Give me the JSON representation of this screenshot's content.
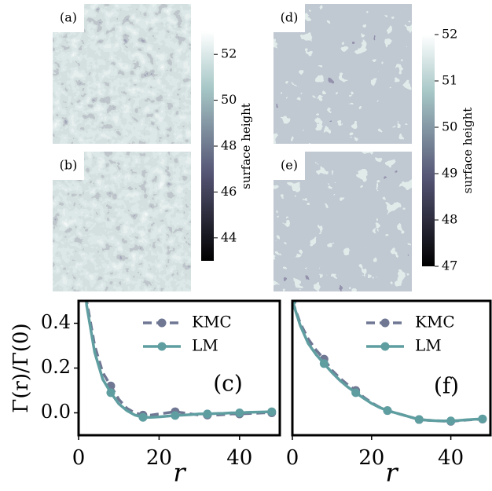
{
  "chart_data": [
    {
      "type": "heatmap",
      "panels": [
        "(a)",
        "(b)"
      ],
      "colorbar_label": "surface height",
      "zlim": [
        43,
        53
      ],
      "zticks": [
        44,
        46,
        48,
        50,
        52
      ]
    },
    {
      "type": "heatmap",
      "panels": [
        "(d)",
        "(e)"
      ],
      "colorbar_label": "surface height",
      "zlim": [
        47,
        52
      ],
      "zticks": [
        47,
        48,
        49,
        50,
        51,
        52
      ]
    },
    {
      "type": "line",
      "xlabel": "r",
      "ylabel": "Γ(r)/Γ(0)",
      "annotation": "(c)",
      "legend": "upper right",
      "markevery": 4,
      "x": [
        0,
        2,
        4,
        6,
        8,
        10,
        12,
        14,
        16,
        18,
        20,
        22,
        24,
        26,
        28,
        30,
        32,
        34,
        36,
        38,
        40,
        42,
        44,
        46,
        48
      ],
      "xlim": [
        0,
        50
      ],
      "ylim": [
        -0.1,
        0.5
      ],
      "xticks": [
        0,
        20,
        40
      ],
      "yticks": [
        {
          "value": 0,
          "label": "0.0"
        },
        0.2,
        0.4
      ],
      "series": [
        {
          "name": "KMC",
          "color": "#6f7793",
          "linestyle": "dashed",
          "values": [
            1.0,
            0.5,
            0.3,
            0.18,
            0.12,
            0.06,
            0.02,
            0.0,
            -0.01,
            -0.01,
            -0.005,
            0.0,
            0.005,
            0.0,
            -0.005,
            -0.01,
            -0.01,
            -0.01,
            -0.008,
            -0.005,
            -0.005,
            -0.003,
            -0.002,
            0.0,
            0.0
          ]
        },
        {
          "name": "LM",
          "color": "#5f9ea0",
          "linestyle": "solid",
          "values": [
            1.0,
            0.48,
            0.27,
            0.15,
            0.09,
            0.04,
            0.01,
            -0.01,
            -0.02,
            -0.02,
            -0.018,
            -0.015,
            -0.012,
            -0.01,
            -0.008,
            -0.005,
            -0.005,
            -0.003,
            -0.002,
            0.0,
            0.0,
            0.002,
            0.003,
            0.004,
            0.005
          ]
        }
      ]
    },
    {
      "type": "line",
      "xlabel": "r",
      "annotation": "(f)",
      "legend": "upper right",
      "markevery": 4,
      "x": [
        0,
        2,
        4,
        6,
        8,
        10,
        12,
        14,
        16,
        18,
        20,
        22,
        24,
        26,
        28,
        30,
        32,
        34,
        36,
        38,
        40,
        42,
        44,
        46,
        48
      ],
      "xlim": [
        0,
        50
      ],
      "ylim": [
        -0.1,
        0.5
      ],
      "xticks": [
        0,
        20,
        40
      ],
      "series": [
        {
          "name": "KMC",
          "color": "#6f7793",
          "linestyle": "dashed",
          "values": [
            0.5,
            0.4,
            0.33,
            0.28,
            0.24,
            0.19,
            0.155,
            0.125,
            0.1,
            0.07,
            0.045,
            0.025,
            0.01,
            0.0,
            -0.01,
            -0.02,
            -0.03,
            -0.033,
            -0.035,
            -0.037,
            -0.038,
            -0.035,
            -0.032,
            -0.03,
            -0.028
          ]
        },
        {
          "name": "LM",
          "color": "#5f9ea0",
          "linestyle": "solid",
          "values": [
            0.5,
            0.39,
            0.31,
            0.26,
            0.22,
            0.18,
            0.145,
            0.115,
            0.09,
            0.065,
            0.042,
            0.024,
            0.01,
            0.0,
            -0.01,
            -0.02,
            -0.03,
            -0.033,
            -0.035,
            -0.036,
            -0.036,
            -0.034,
            -0.031,
            -0.029,
            -0.027
          ]
        }
      ]
    }
  ]
}
